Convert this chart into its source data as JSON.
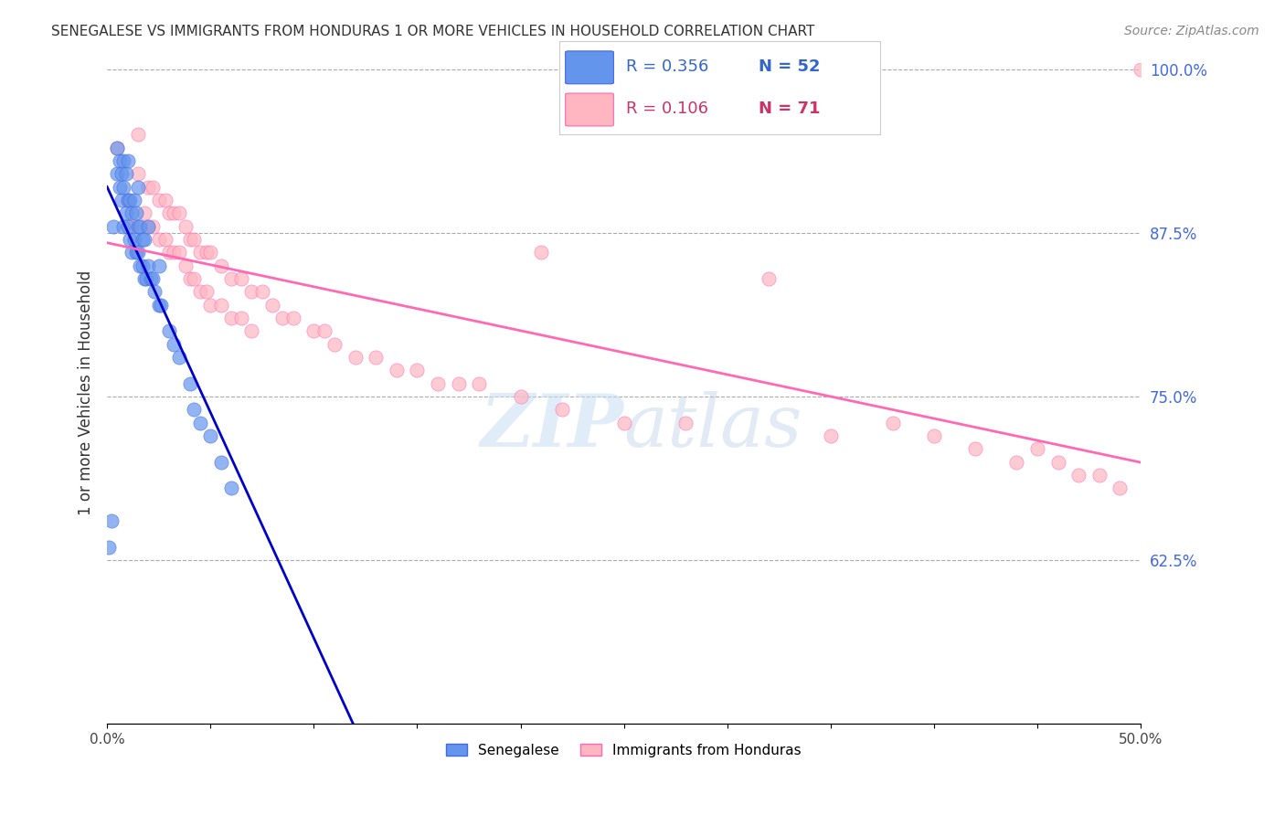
{
  "title": "SENEGALESE VS IMMIGRANTS FROM HONDURAS 1 OR MORE VEHICLES IN HOUSEHOLD CORRELATION CHART",
  "source": "Source: ZipAtlas.com",
  "ylabel": "1 or more Vehicles in Household",
  "xlim": [
    0.0,
    0.5
  ],
  "ylim": [
    0.5,
    1.005
  ],
  "yticks_right": [
    0.625,
    0.75,
    0.875,
    1.0
  ],
  "ytick_right_labels": [
    "62.5%",
    "75.0%",
    "87.5%",
    "100.0%"
  ],
  "blue_color": "#6495ED",
  "pink_color": "#FFB6C1",
  "blue_line_color": "#0000CD",
  "pink_line_color": "#FF69B4",
  "blue_text_color": "#3366CC",
  "pink_text_color": "#CC3366",
  "legend_blue_R": "R = 0.356",
  "legend_blue_N": "N = 52",
  "legend_pink_R": "R = 0.106",
  "legend_pink_N": "N = 71",
  "watermark_zip": "ZIP",
  "watermark_atlas": "atlas",
  "senegalese_x": [
    0.003,
    0.005,
    0.005,
    0.006,
    0.006,
    0.007,
    0.007,
    0.008,
    0.008,
    0.008,
    0.009,
    0.009,
    0.01,
    0.01,
    0.01,
    0.011,
    0.011,
    0.012,
    0.012,
    0.013,
    0.013,
    0.014,
    0.014,
    0.015,
    0.015,
    0.015,
    0.016,
    0.016,
    0.017,
    0.017,
    0.018,
    0.018,
    0.019,
    0.02,
    0.02,
    0.021,
    0.022,
    0.023,
    0.025,
    0.025,
    0.026,
    0.03,
    0.032,
    0.035,
    0.04,
    0.042,
    0.045,
    0.05,
    0.055,
    0.06,
    0.001,
    0.002
  ],
  "senegalese_y": [
    0.88,
    0.92,
    0.94,
    0.91,
    0.93,
    0.9,
    0.92,
    0.88,
    0.91,
    0.93,
    0.89,
    0.92,
    0.88,
    0.9,
    0.93,
    0.87,
    0.9,
    0.86,
    0.89,
    0.87,
    0.9,
    0.86,
    0.89,
    0.86,
    0.88,
    0.91,
    0.85,
    0.88,
    0.85,
    0.87,
    0.84,
    0.87,
    0.84,
    0.85,
    0.88,
    0.84,
    0.84,
    0.83,
    0.82,
    0.85,
    0.82,
    0.8,
    0.79,
    0.78,
    0.76,
    0.74,
    0.73,
    0.72,
    0.7,
    0.68,
    0.635,
    0.655
  ],
  "honduras_x": [
    0.005,
    0.01,
    0.012,
    0.015,
    0.015,
    0.018,
    0.02,
    0.02,
    0.022,
    0.022,
    0.025,
    0.025,
    0.028,
    0.028,
    0.03,
    0.03,
    0.032,
    0.032,
    0.035,
    0.035,
    0.038,
    0.038,
    0.04,
    0.04,
    0.042,
    0.042,
    0.045,
    0.045,
    0.048,
    0.048,
    0.05,
    0.05,
    0.055,
    0.055,
    0.06,
    0.06,
    0.065,
    0.065,
    0.07,
    0.07,
    0.075,
    0.08,
    0.085,
    0.09,
    0.1,
    0.105,
    0.11,
    0.12,
    0.13,
    0.14,
    0.15,
    0.16,
    0.17,
    0.18,
    0.2,
    0.21,
    0.22,
    0.25,
    0.28,
    0.35,
    0.32,
    0.38,
    0.4,
    0.42,
    0.44,
    0.45,
    0.46,
    0.47,
    0.48,
    0.49,
    0.5
  ],
  "honduras_y": [
    0.94,
    0.9,
    0.88,
    0.95,
    0.92,
    0.89,
    0.88,
    0.91,
    0.88,
    0.91,
    0.87,
    0.9,
    0.87,
    0.9,
    0.86,
    0.89,
    0.86,
    0.89,
    0.86,
    0.89,
    0.85,
    0.88,
    0.84,
    0.87,
    0.84,
    0.87,
    0.83,
    0.86,
    0.83,
    0.86,
    0.82,
    0.86,
    0.82,
    0.85,
    0.81,
    0.84,
    0.81,
    0.84,
    0.8,
    0.83,
    0.83,
    0.82,
    0.81,
    0.81,
    0.8,
    0.8,
    0.79,
    0.78,
    0.78,
    0.77,
    0.77,
    0.76,
    0.76,
    0.76,
    0.75,
    0.86,
    0.74,
    0.73,
    0.73,
    0.72,
    0.84,
    0.73,
    0.72,
    0.71,
    0.7,
    0.71,
    0.7,
    0.69,
    0.69,
    0.68,
    1.0
  ]
}
